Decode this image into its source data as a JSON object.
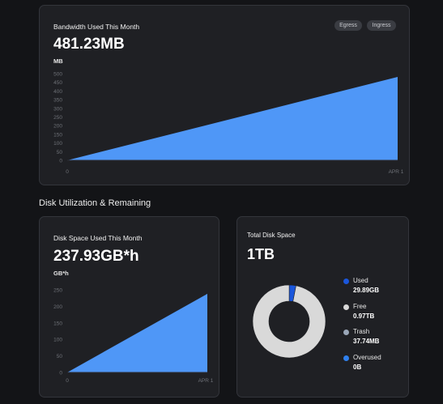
{
  "bandwidth": {
    "title": "Bandwidth Used This Month",
    "value": "481.23MB",
    "unit": "MB",
    "toggles": [
      "Egress",
      "Ingress"
    ]
  },
  "section_heading": "Disk Utilization & Remaining",
  "disk_space": {
    "title": "Disk Space Used This Month",
    "value": "237.93GB*h",
    "unit": "GB*h"
  },
  "total_disk": {
    "title": "Total Disk Space",
    "value": "1TB",
    "legend": [
      {
        "label": "Used",
        "value": "29.89GB",
        "color": "#1a56db"
      },
      {
        "label": "Free",
        "value": "0.97TB",
        "color": "#d9d9d9"
      },
      {
        "label": "Trash",
        "value": "37.74MB",
        "color": "#9aa7b8"
      },
      {
        "label": "Overused",
        "value": "0B",
        "color": "#2f80ed"
      }
    ]
  },
  "chart_data": [
    {
      "type": "area",
      "ylabel": "MB",
      "yticks": [
        0,
        50,
        100,
        150,
        200,
        250,
        300,
        350,
        400,
        450,
        500
      ],
      "ylim": [
        0,
        500
      ],
      "x_tick_labels": [
        "0",
        "APR 1"
      ],
      "x": [
        0,
        1
      ],
      "values": [
        0,
        481.23
      ],
      "color": "#4f97f7",
      "grid": false
    },
    {
      "type": "area",
      "ylabel": "GB*h",
      "yticks": [
        0,
        50,
        100,
        150,
        200,
        250
      ],
      "ylim": [
        0,
        250
      ],
      "x_tick_labels": [
        "0",
        "APR 1"
      ],
      "x": [
        0,
        1
      ],
      "values": [
        0,
        237.93
      ],
      "color": "#4f97f7",
      "grid": false
    },
    {
      "type": "pie",
      "style": "donut",
      "categories": [
        "Used",
        "Free",
        "Trash",
        "Overused"
      ],
      "values": [
        29.89,
        970,
        0.03774,
        0
      ],
      "unit": "GB",
      "colors": [
        "#1a56db",
        "#d9d9d9",
        "#9aa7b8",
        "#2f80ed"
      ]
    }
  ]
}
